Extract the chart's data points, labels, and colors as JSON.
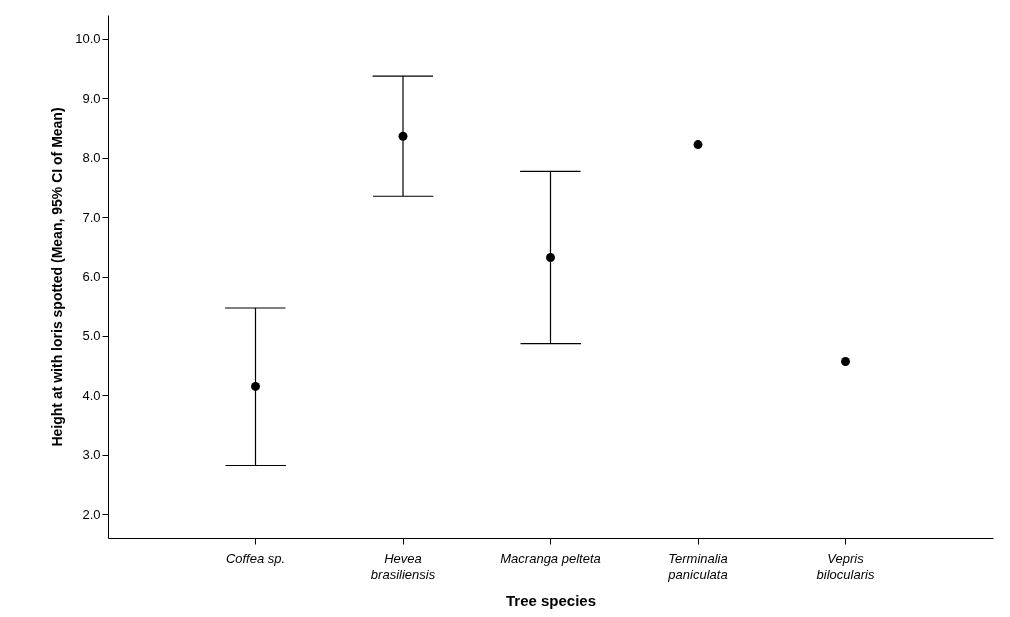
{
  "chart_data": {
    "type": "scatter",
    "xlabel": "Tree species",
    "ylabel": "Height at with loris spotted (Mean, 95% CI of Mean)",
    "categories": [
      "Coffea sp.",
      "Hevea brasiliensis",
      "Macranga pelteta",
      "Terminalia paniculata",
      "Vepris bilocularis"
    ],
    "color": "#000000",
    "values": [
      4.15,
      8.36,
      6.32,
      8.22,
      4.57
    ],
    "errors": [
      [
        2.82,
        5.47
      ],
      [
        7.35,
        9.37
      ],
      [
        4.87,
        7.77
      ],
      null,
      null
    ],
    "ylim": [
      1.6,
      10.4
    ],
    "yticks": [
      {
        "value": 2,
        "label": "2.0"
      },
      {
        "value": 3,
        "label": "3.0"
      },
      {
        "value": 4,
        "label": "4.0"
      },
      {
        "value": 5,
        "label": "5.0"
      },
      {
        "value": 6,
        "label": "6.0"
      },
      {
        "value": 7,
        "label": "7.0"
      },
      {
        "value": 8,
        "label": "8.0"
      },
      {
        "value": 9,
        "label": "9.0"
      },
      {
        "value": 10,
        "label": "10.0"
      }
    ],
    "grid": false,
    "marker": "circle"
  }
}
